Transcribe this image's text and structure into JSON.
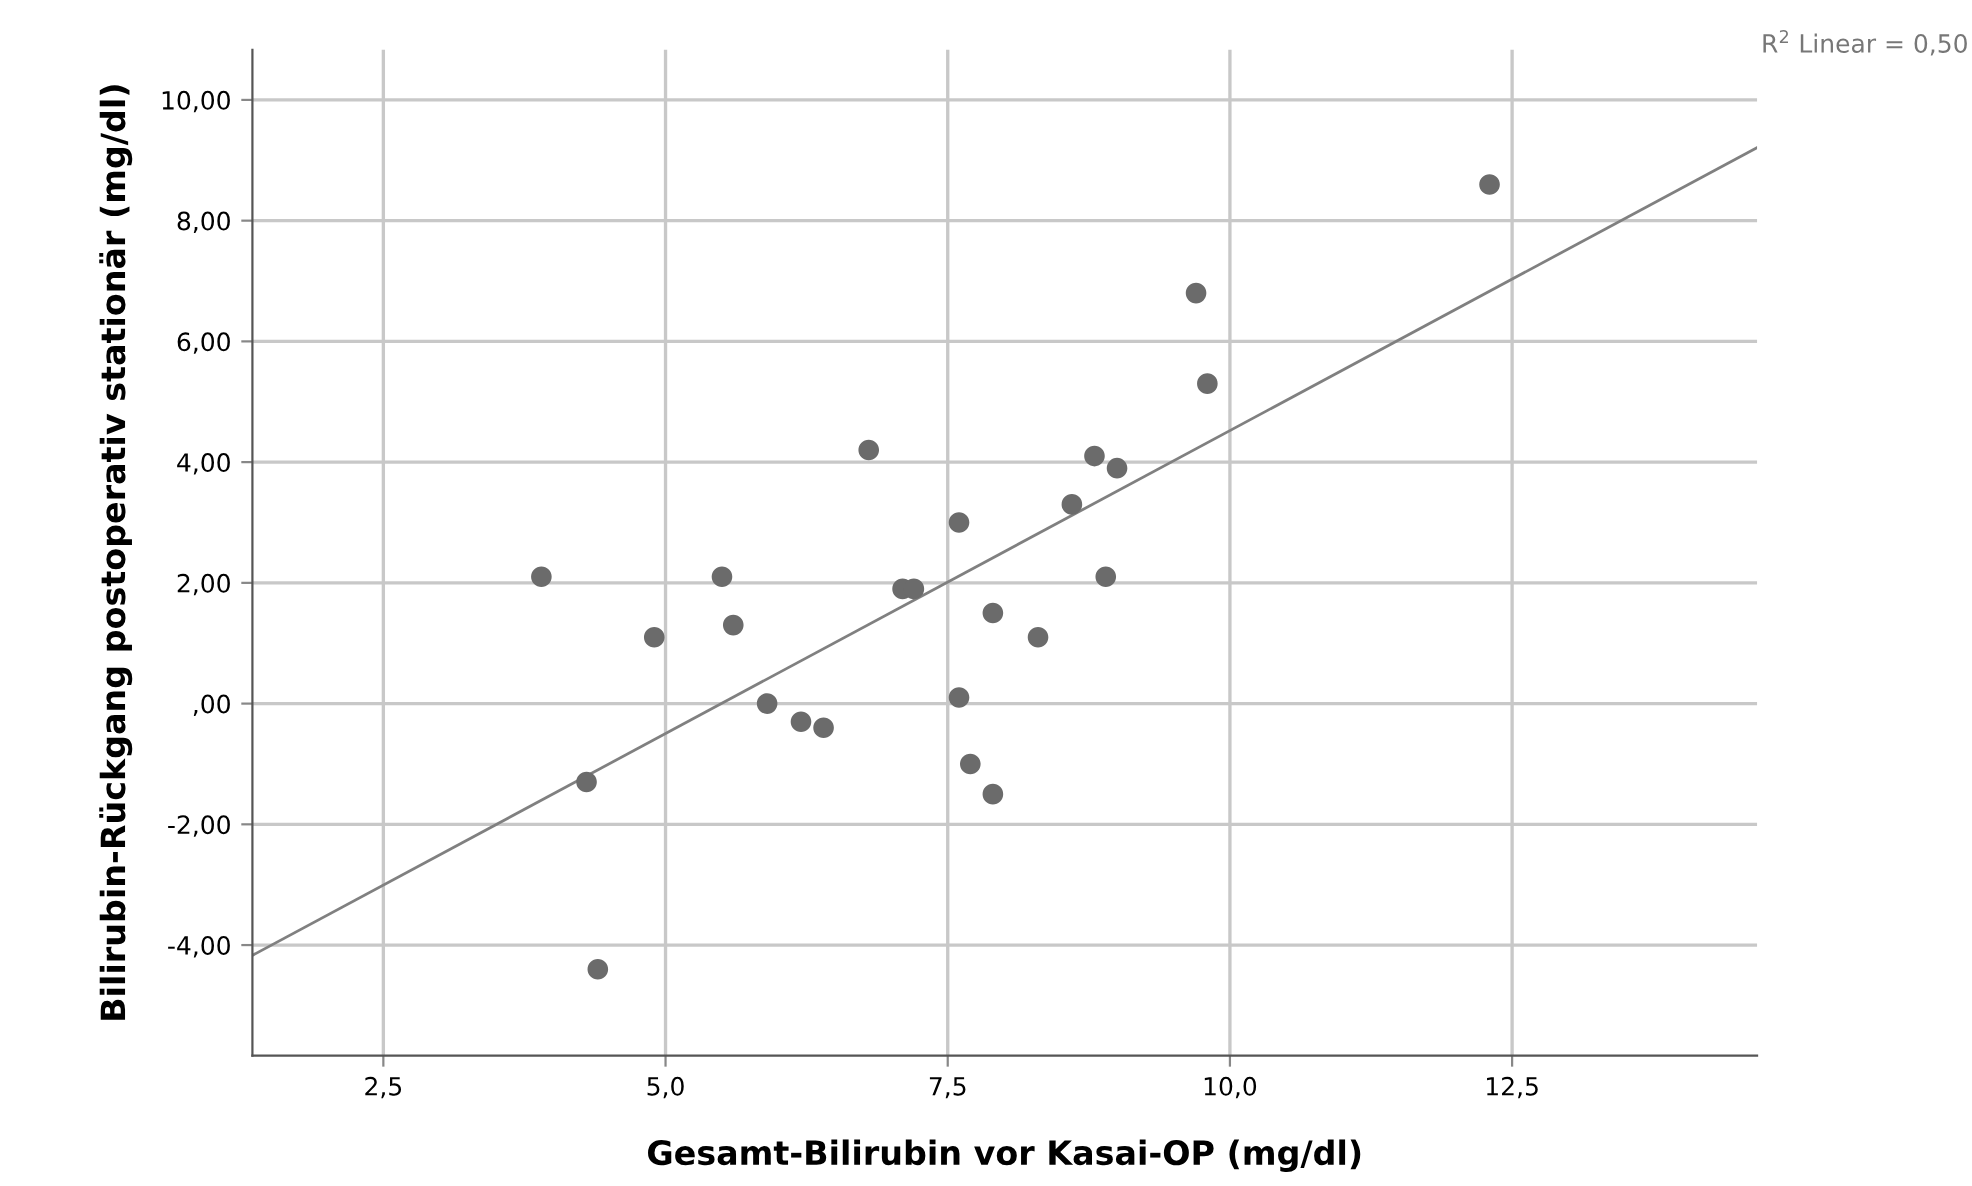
{
  "chart_data": {
    "type": "scatter",
    "xlabel": "Gesamt-Bilirubin vor Kasai-OP (mg/dl)",
    "ylabel": "Bilirubin-Rückgang postoperativ stationär (mg/dl)",
    "annotations": [
      "R$^{2}$ Linear = 0,50"
    ],
    "xlim": [
      1.34,
      14.67
    ],
    "ylim": [
      -5.83,
      10.83
    ],
    "xticks": [
      {
        "value": 2.5,
        "label": "2,5"
      },
      {
        "value": 5,
        "label": "5,0"
      },
      {
        "value": 7.5,
        "label": "7,5"
      },
      {
        "value": 10,
        "label": "10,0"
      },
      {
        "value": 12.5,
        "label": "12,5"
      }
    ],
    "yticks": [
      {
        "value": -4,
        "label": "-4,00"
      },
      {
        "value": -2,
        "label": "-2,00"
      },
      {
        "value": 0,
        "label": ",00"
      },
      {
        "value": 2,
        "label": "2,00"
      },
      {
        "value": 4,
        "label": "4,00"
      },
      {
        "value": 6,
        "label": "6,00"
      },
      {
        "value": 8,
        "label": "8,00"
      },
      {
        "value": 10,
        "label": "10,00"
      }
    ],
    "grid": true,
    "series": [
      {
        "marker": "circle",
        "color": "#6b6b6b",
        "x": [
          3.9,
          4.3,
          4.4,
          4.9,
          5.5,
          5.6,
          5.9,
          6.2,
          6.4,
          6.8,
          7.1,
          7.2,
          7.6,
          7.6,
          7.7,
          7.9,
          7.9,
          8.3,
          8.6,
          8.8,
          8.9,
          9.0,
          9.7,
          9.8,
          12.3
        ],
        "values": [
          2.1,
          -1.3,
          -4.4,
          1.1,
          2.1,
          1.3,
          0.0,
          -0.3,
          -0.4,
          4.2,
          1.9,
          1.9,
          3.0,
          0.1,
          -1.0,
          1.5,
          -1.5,
          1.1,
          3.3,
          4.1,
          2.1,
          3.9,
          6.8,
          5.3,
          8.6
        ]
      },
      {
        "type": "line",
        "color": "#808080",
        "x": [
          1.34,
          14.67
        ],
        "values": [
          -4.17,
          9.21
        ]
      }
    ]
  }
}
